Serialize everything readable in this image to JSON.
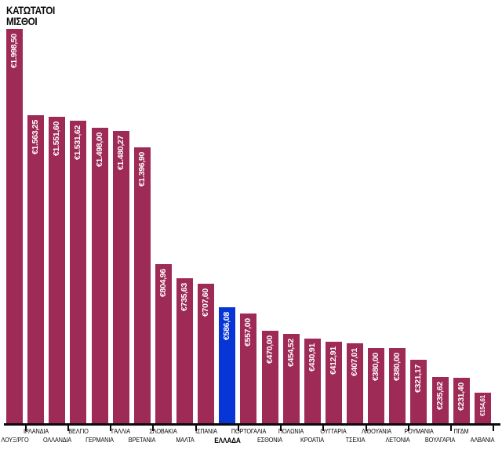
{
  "title": {
    "line1": "ΚΑΤΩΤΑΤΟΙ",
    "line2": "ΜΙΣΘΟΙ"
  },
  "chart_data": {
    "type": "bar",
    "title": "ΚΑΤΩΤΑΤΟΙ ΜΙΣΘΟΙ",
    "categories": [
      "ΛΟΥΞ/ΡΓΟ",
      "ΙΡΛΑΝΔΙΑ",
      "ΟΛΛΑΝΔΙΑ",
      "ΒΕΛΓΙΟ",
      "ΓΕΡΜΑΝΙΑ",
      "ΓΑΛΛΙΑ",
      "ΒΡΕΤΑΝΙΑ",
      "ΣΛΟΒΑΚΙΑ",
      "ΜΑΛΤΑ",
      "ΙΣΠΑΝΙΑ",
      "ΕΛΛΑΔΑ",
      "ΠΟΡΤΟΓΑΛΙΑ",
      "ΕΣΘΟΝΙΑ",
      "ΠΟΛΩΝΙΑ",
      "ΚΡΟΑΤΙΑ",
      "ΟΥΓΓΑΡΙΑ",
      "ΤΣΕΧΙΑ",
      "ΛΙΘΟΥΑΝΙΑ",
      "ΛΕΤΟΝΙΑ",
      "ΡΟΥΜΑΝΙΑ",
      "ΒΟΥΛΓΑΡΙΑ",
      "ΠΓΔΜ",
      "ΑΛΒΑΝΙΑ"
    ],
    "values": [
      1998.5,
      1563.25,
      1551.6,
      1531.62,
      1498.0,
      1480.27,
      1396.9,
      804.96,
      735.63,
      707.6,
      586.08,
      557.0,
      470.0,
      454.52,
      430.91,
      412.91,
      407.01,
      380.0,
      380.0,
      321.17,
      235.62,
      231.4,
      154.61
    ],
    "value_labels": [
      "€1.998,50",
      "€1.563,25",
      "€1.551,60",
      "€1.531,62",
      "€1.498,00",
      "€1.480,27",
      "€1.396,90",
      "€804,96",
      "€735,63",
      "€707,60",
      "€586,08",
      "€557,00",
      "€470,00",
      "€454,52",
      "€430,91",
      "€412,91",
      "€407,01",
      "€380,00",
      "€380,00",
      "€321,17",
      "€235,62",
      "€231,40",
      "€154,61"
    ],
    "highlight_index": 10,
    "highlight_category": "ΕΛΛΑΔΑ",
    "bar_color": "#9e2a56",
    "highlight_color": "#0836d6",
    "axis_color": "#0a0a0a",
    "value_label_color": "#ffffff",
    "xlabel": "",
    "ylabel": "",
    "ylim": [
      0,
      2000
    ],
    "grid": false,
    "legend": false
  }
}
